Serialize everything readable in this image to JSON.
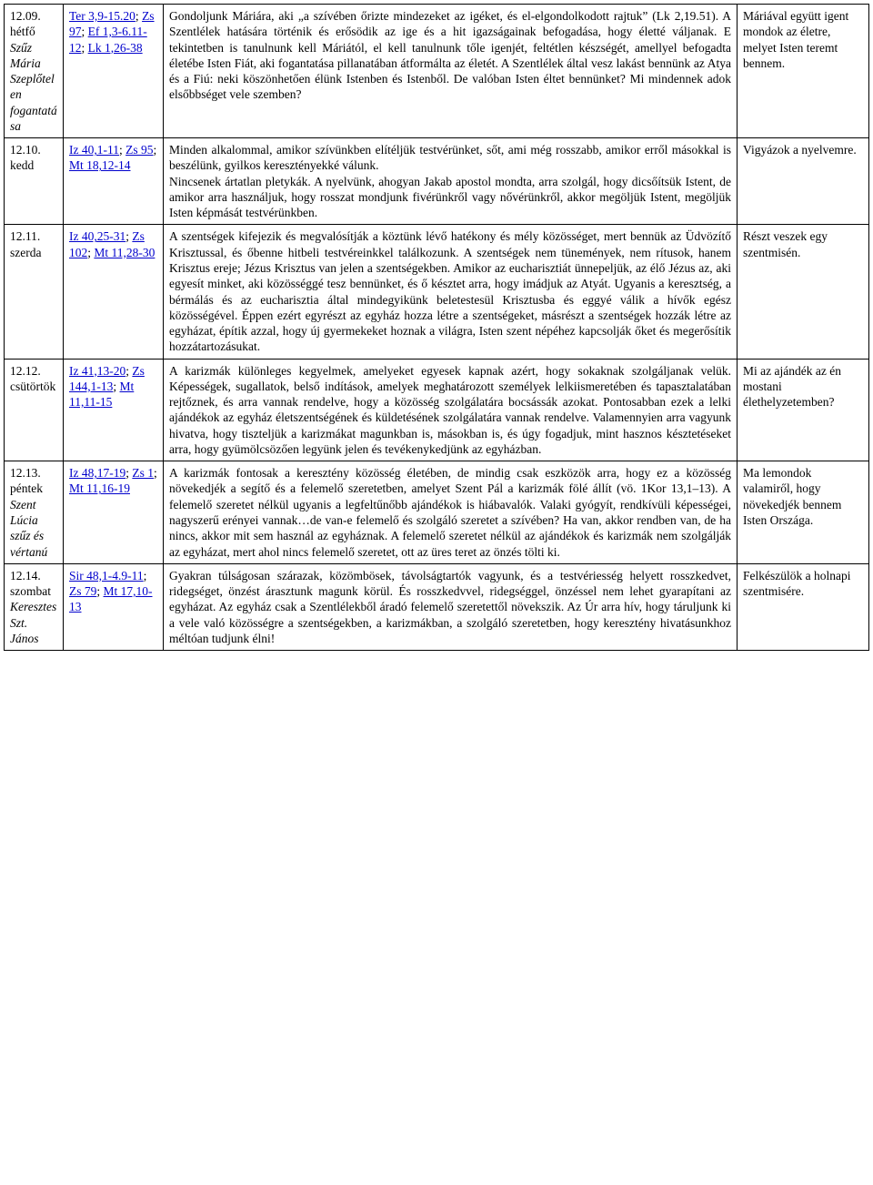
{
  "rows": [
    {
      "date_main": "12.09. hétfő",
      "date_sub": "Szűz Mária Szeplőtelen fogantatása",
      "refs": [
        {
          "t": "Ter 3,9-15.20"
        },
        {
          "t": "; "
        },
        {
          "t": "Zs 97"
        },
        {
          "t": "; "
        },
        {
          "t": "Ef 1,3-6.11-12"
        },
        {
          "t": "; "
        },
        {
          "t": "Lk 1,26-38"
        }
      ],
      "reflection": "Gondoljunk Máriára, aki „a szívében őrizte mindezeket az igéket, és el-elgondolkodott rajtuk” (Lk 2,19.51). A Szentlélek hatására történik és erősödik az ige és a hit igazságainak befogadása, hogy életté váljanak. E tekintetben is tanulnunk kell Máriától, el kell tanulnunk tőle igenjét, feltétlen készségét, amellyel befogadta életébe Isten Fiát, aki fogantatása pillanatában átformálta az életét. A Szentlélek által vesz lakást bennünk az Atya és a Fiú: neki köszönhetően élünk Istenben és Istenből. De valóban Isten éltet bennünket? Mi mindennek adok elsőbbséget vele szemben?",
      "commit": "Máriával együtt igent mondok az életre, melyet Isten teremt bennem."
    },
    {
      "date_main": "12.10. kedd",
      "date_sub": "",
      "refs": [
        {
          "t": "Iz 40,1-11"
        },
        {
          "t": "; "
        },
        {
          "t": "Zs 95"
        },
        {
          "t": "; "
        },
        {
          "t": "Mt 18,12-14"
        }
      ],
      "reflection": "Minden alkalommal, amikor szívünkben elítéljük testvérünket, sőt, ami még rosszabb, amikor erről másokkal is beszélünk, gyilkos keresztényekké válunk.\nNincsenek ártatlan pletykák. A nyelvünk, ahogyan Jakab apostol mondta, arra szolgál, hogy dicsőítsük Istent, de amikor arra használjuk, hogy rosszat mondjunk fivérünkről vagy nővérünkről, akkor megöljük Istent, megöljük Isten képmását testvérünkben.",
      "commit": "Vigyázok a nyelvemre."
    },
    {
      "date_main": "12.11. szerda",
      "date_sub": "",
      "refs": [
        {
          "t": "Iz 40,25-31"
        },
        {
          "t": "; "
        },
        {
          "t": "Zs 102"
        },
        {
          "t": "; "
        },
        {
          "t": "Mt 11,28-30"
        }
      ],
      "reflection": "A szentségek kifejezik és megvalósítják a köztünk lévő hatékony és mély közösséget, mert bennük az Üdvözítő Krisztussal, és őbenne hitbeli testvéreinkkel találkozunk. A szentségek nem tünemények, nem rítusok, hanem Krisztus ereje; Jézus Krisztus van jelen a szentségekben. Amikor az eucharisztiát ünnepeljük, az élő Jézus az, aki egyesít minket, aki közösséggé tesz bennünket, és ő késztet arra, hogy imádjuk az Atyát. Ugyanis a keresztség, a bérmálás és az eucharisztia által mindegyikünk beletestesül Krisztusba és eggyé válik a hívők egész közösségével. Éppen ezért egyrészt az egyház hozza létre a szentségeket, másrészt a szentségek hozzák létre az egyházat, építik azzal, hogy új gyermekeket hoznak a világra, Isten szent népéhez kapcsolják őket és megerősítik hozzátartozásukat.",
      "commit": "Részt veszek egy szentmisén."
    },
    {
      "date_main": "12.12. csütörtök",
      "date_sub": "",
      "refs": [
        {
          "t": "Iz 41,13-20"
        },
        {
          "t": "; "
        },
        {
          "t": "Zs 144,1-13"
        },
        {
          "t": "; "
        },
        {
          "t": "Mt 11,11-15"
        }
      ],
      "reflection": "A karizmák különleges kegyelmek, amelyeket egyesek kapnak azért, hogy sokaknak szolgáljanak velük. Képességek, sugallatok, belső indítások, amelyek meghatározott személyek lelkiismeretében és tapasztalatában rejtőznek, és arra vannak rendelve, hogy a közösség szolgálatára bocsássák azokat. Pontosabban ezek a lelki ajándékok az egyház életszentségének és küldetésének szolgálatára vannak rendelve. Valamennyien arra vagyunk hivatva, hogy tiszteljük a karizmákat magunkban is, másokban is, és úgy fogadjuk, mint hasznos késztetéseket arra, hogy gyümölcsözően legyünk jelen és tevékenykedjünk az egyházban.",
      "commit": "Mi az ajándék az én mostani élethelyzetemben?"
    },
    {
      "date_main": "12.13. péntek",
      "date_sub": "Szent Lúcia szűz és vértanú",
      "refs": [
        {
          "t": "Iz 48,17-19"
        },
        {
          "t": "; "
        },
        {
          "t": "Zs 1"
        },
        {
          "t": "; "
        },
        {
          "t": "Mt 11,16-19"
        }
      ],
      "reflection": "A karizmák fontosak a keresztény közösség életében, de mindig csak eszközök arra, hogy ez a közösség növekedjék a segítő és a felemelő szeretetben, amelyet Szent Pál a karizmák fölé állít (vö. 1Kor 13,1–13). A felemelő szeretet nélkül ugyanis a legfeltűnőbb ajándékok is hiábavalók. Valaki gyógyít, rendkívüli képességei, nagyszerű erényei vannak…de van-e felemelő és szolgáló szeretet a szívében? Ha van, akkor rendben van, de ha nincs, akkor mit sem használ az egyháznak. A felemelő szeretet nélkül az ajándékok és karizmák nem szolgálják az egyházat, mert ahol nincs felemelő szeretet, ott az üres teret az önzés tölti ki.",
      "commit": "Ma lemondok valamiről, hogy növekedjék bennem Isten Országa."
    },
    {
      "date_main": "12.14. szombat",
      "date_sub": "Keresztes Szt. János",
      "refs": [
        {
          "t": "Sir 48,1-4.9-11"
        },
        {
          "t": "; "
        },
        {
          "t": "Zs 79"
        },
        {
          "t": "; "
        },
        {
          "t": "Mt 17,10-13"
        }
      ],
      "reflection": "Gyakran túlságosan szárazak, közömbösek, távolságtartók vagyunk, és a testvériesség helyett rosszkedvet, ridegséget, önzést árasztunk magunk körül. És rosszkedvvel, ridegséggel, önzéssel nem lehet gyarapítani az egyházat. Az egyház csak a Szentlélekből áradó felemelő szeretettől növekszik. Az Úr arra hív, hogy táruljunk ki a vele való közösségre a szentségekben, a karizmákban, a szolgáló szeretetben, hogy keresztény hivatásunkhoz méltóan tudjunk élni!",
      "commit": "Felkészülök a holnapi szentmisére."
    }
  ]
}
